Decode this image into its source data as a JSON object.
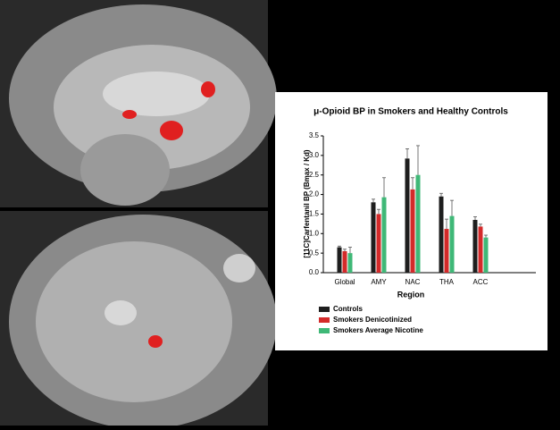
{
  "chart_data": {
    "type": "bar",
    "title": "μ-Opioid BP in Smokers and Healthy Controls",
    "y_label": "[11C]Carfentanil BP (Bmax / Kd)",
    "x_label": "Region",
    "categories": [
      "Global",
      "AMY",
      "NAC",
      "THA",
      "ACC"
    ],
    "series": [
      {
        "name": "Controls",
        "color": "#1e1e1e",
        "values": [
          0.65,
          1.8,
          2.92,
          1.95,
          1.35
        ],
        "errors": [
          0.03,
          0.08,
          0.25,
          0.08,
          0.08
        ]
      },
      {
        "name": "Smokers Denicotinized",
        "color": "#d42a2a",
        "values": [
          0.55,
          1.5,
          2.13,
          1.12,
          1.18
        ],
        "errors": [
          0.05,
          0.12,
          0.3,
          0.25,
          0.06
        ]
      },
      {
        "name": "Smokers Average Nicotine",
        "color": "#3fb877",
        "values": [
          0.5,
          1.93,
          2.5,
          1.45,
          0.9
        ],
        "errors": [
          0.15,
          0.5,
          0.75,
          0.4,
          0.06
        ]
      }
    ],
    "ylim": [
      0,
      3.5
    ],
    "yticks": [
      {
        "value": 0,
        "label": "0.0"
      },
      0.5,
      {
        "value": 1,
        "label": "1.0"
      },
      1.5,
      {
        "value": 2,
        "label": "2.0"
      },
      2.5,
      {
        "value": 3,
        "label": "3.0"
      },
      3.5
    ],
    "grid": false
  }
}
